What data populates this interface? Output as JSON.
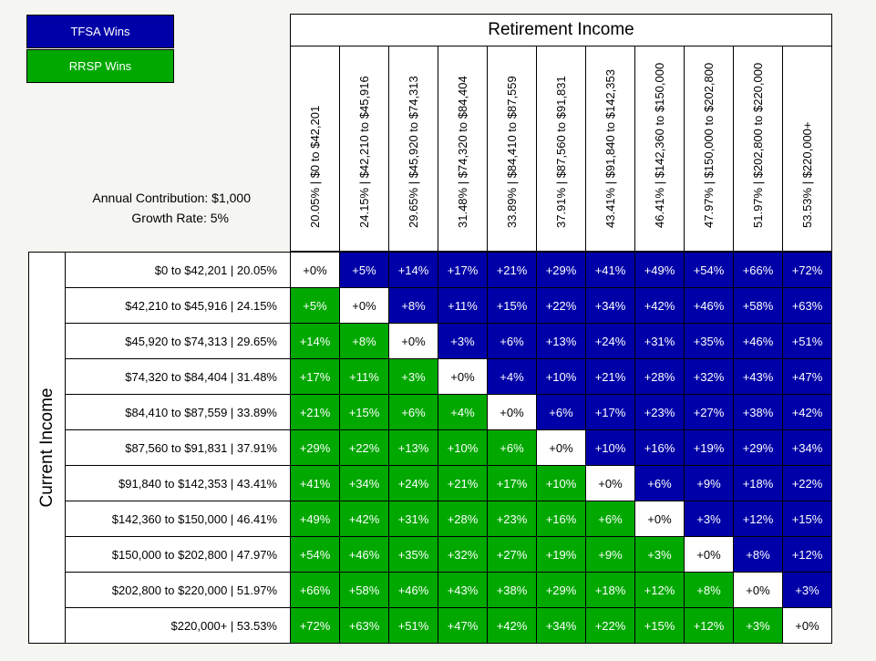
{
  "legend": {
    "tfsa_label": "TFSA Wins",
    "rrsp_label": "RRSP Wins",
    "tfsa_color": "#0000a8",
    "rrsp_color": "#00a800"
  },
  "info": {
    "annual_contribution": "Annual Contribution: $1,000",
    "growth_rate": "Growth Rate: 5%"
  },
  "retirement_title": "Retirement Income",
  "current_title": "Current Income",
  "columns": [
    "20.05%  |  $0 to $42,201",
    "24.15%  |  $42,210 to $45,916",
    "29.65%  |  $45,920 to $74,313",
    "31.48%  |  $74,320 to $84,404",
    "33.89%  |  $84,410 to $87,559",
    "37.91%  |  $87,560 to $91,831",
    "43.41%  |  $91,840 to $142,353",
    "46.41%  |  $142,360 to $150,000",
    "47.97%  |  $150,000 to $202,800",
    "51.97%  |  $202,800 to $220,000",
    "53.53%  |  $220,000+"
  ],
  "rows": [
    {
      "label": "$0 to $42,201  |  20.05%",
      "cells": [
        "+0%",
        "+5%",
        "+14%",
        "+17%",
        "+21%",
        "+29%",
        "+41%",
        "+49%",
        "+54%",
        "+66%",
        "+72%"
      ]
    },
    {
      "label": "$42,210 to $45,916  |  24.15%",
      "cells": [
        "+5%",
        "+0%",
        "+8%",
        "+11%",
        "+15%",
        "+22%",
        "+34%",
        "+42%",
        "+46%",
        "+58%",
        "+63%"
      ]
    },
    {
      "label": "$45,920 to $74,313  |  29.65%",
      "cells": [
        "+14%",
        "+8%",
        "+0%",
        "+3%",
        "+6%",
        "+13%",
        "+24%",
        "+31%",
        "+35%",
        "+46%",
        "+51%"
      ]
    },
    {
      "label": "$74,320 to $84,404  |  31.48%",
      "cells": [
        "+17%",
        "+11%",
        "+3%",
        "+0%",
        "+4%",
        "+10%",
        "+21%",
        "+28%",
        "+32%",
        "+43%",
        "+47%"
      ]
    },
    {
      "label": "$84,410 to $87,559  |  33.89%",
      "cells": [
        "+21%",
        "+15%",
        "+6%",
        "+4%",
        "+0%",
        "+6%",
        "+17%",
        "+23%",
        "+27%",
        "+38%",
        "+42%"
      ]
    },
    {
      "label": "$87,560 to $91,831  |  37.91%",
      "cells": [
        "+29%",
        "+22%",
        "+13%",
        "+10%",
        "+6%",
        "+0%",
        "+10%",
        "+16%",
        "+19%",
        "+29%",
        "+34%"
      ]
    },
    {
      "label": "$91,840 to $142,353  |  43.41%",
      "cells": [
        "+41%",
        "+34%",
        "+24%",
        "+21%",
        "+17%",
        "+10%",
        "+0%",
        "+6%",
        "+9%",
        "+18%",
        "+22%"
      ]
    },
    {
      "label": "$142,360 to $150,000  |  46.41%",
      "cells": [
        "+49%",
        "+42%",
        "+31%",
        "+28%",
        "+23%",
        "+16%",
        "+6%",
        "+0%",
        "+3%",
        "+12%",
        "+15%"
      ]
    },
    {
      "label": "$150,000 to $202,800  |  47.97%",
      "cells": [
        "+54%",
        "+46%",
        "+35%",
        "+32%",
        "+27%",
        "+19%",
        "+9%",
        "+3%",
        "+0%",
        "+8%",
        "+12%"
      ]
    },
    {
      "label": "$202,800 to $220,000  |  51.97%",
      "cells": [
        "+66%",
        "+58%",
        "+46%",
        "+43%",
        "+38%",
        "+29%",
        "+18%",
        "+12%",
        "+8%",
        "+0%",
        "+3%"
      ]
    },
    {
      "label": "$220,000+  |  53.53%",
      "cells": [
        "+72%",
        "+63%",
        "+51%",
        "+47%",
        "+42%",
        "+34%",
        "+22%",
        "+15%",
        "+12%",
        "+3%",
        "+0%"
      ]
    }
  ]
}
